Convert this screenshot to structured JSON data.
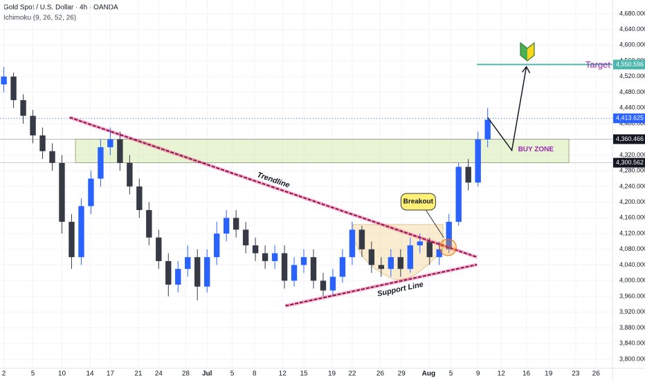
{
  "chart_data": {
    "type": "candlestick",
    "title": "Gold Spot / U.S. Dollar · 4h · OANDA",
    "subtitle": "Ichimoku (9, 26, 52, 26)",
    "x": [
      0,
      1,
      2,
      3,
      4,
      5,
      6,
      7,
      8,
      9,
      10,
      11,
      12,
      13,
      14,
      15,
      16,
      17,
      18,
      19,
      20,
      21,
      22,
      23,
      24,
      25,
      26,
      27,
      28,
      29,
      30,
      31,
      32,
      33,
      34,
      35,
      36,
      37,
      38,
      39,
      40,
      41,
      42,
      43,
      44,
      45,
      46,
      47,
      48,
      49,
      50
    ],
    "open": [
      4500,
      4520,
      4460,
      4420,
      4370,
      4330,
      4300,
      4150,
      4060,
      4190,
      4260,
      4340,
      4360,
      4300,
      4240,
      4180,
      4110,
      4050,
      3990,
      4030,
      4060,
      3985,
      4060,
      4120,
      4160,
      4130,
      4090,
      4070,
      4050,
      4070,
      4000,
      4040,
      4060,
      4000,
      3975,
      4010,
      4060,
      4130,
      4080,
      4040,
      4030,
      4060,
      4030,
      4090,
      4100,
      4060,
      4080,
      4150,
      4290,
      4250,
      4360
    ],
    "high": [
      4545,
      4530,
      4475,
      4435,
      4390,
      4350,
      4320,
      4170,
      4210,
      4280,
      4360,
      4390,
      4380,
      4320,
      4260,
      4200,
      4130,
      4070,
      4050,
      4090,
      4080,
      4080,
      4150,
      4180,
      4180,
      4150,
      4110,
      4090,
      4090,
      4090,
      4060,
      4080,
      4080,
      4020,
      4030,
      4080,
      4150,
      4140,
      4100,
      4060,
      4080,
      4080,
      4110,
      4120,
      4110,
      4100,
      4170,
      4300,
      4310,
      4380,
      4440
    ],
    "low": [
      4480,
      4440,
      4400,
      4350,
      4310,
      4280,
      4120,
      4030,
      4040,
      4170,
      4240,
      4320,
      4280,
      4220,
      4160,
      4090,
      4030,
      3960,
      3970,
      4010,
      3950,
      3970,
      4040,
      4100,
      4110,
      4070,
      4050,
      4030,
      4030,
      3980,
      3985,
      4020,
      3980,
      3960,
      3960,
      3995,
      4040,
      4060,
      4020,
      4010,
      4010,
      4010,
      4020,
      4070,
      4040,
      4040,
      4070,
      4140,
      4230,
      4240,
      4340
    ],
    "close": [
      4520,
      4460,
      4420,
      4370,
      4330,
      4300,
      4150,
      4060,
      4190,
      4260,
      4340,
      4360,
      4300,
      4240,
      4180,
      4110,
      4050,
      3990,
      4030,
      4060,
      3985,
      4060,
      4120,
      4160,
      4130,
      4090,
      4070,
      4050,
      4070,
      4000,
      4040,
      4060,
      4000,
      3975,
      4010,
      4060,
      4130,
      4080,
      4040,
      4030,
      4060,
      4030,
      4090,
      4100,
      4060,
      4080,
      4150,
      4290,
      4250,
      4360,
      4410
    ],
    "up_color": "#2962ff",
    "down_color": "#363a45",
    "grid": true,
    "xlim": [
      -0.4,
      62.9
    ],
    "xticks": [
      {
        "value": 0,
        "label": "2"
      },
      {
        "value": 3,
        "label": "5"
      },
      {
        "value": 6,
        "label": "10"
      },
      {
        "value": 8.9,
        "label": "14"
      },
      {
        "value": 11,
        "label": "17"
      },
      {
        "value": 13.9,
        "label": "21"
      },
      {
        "value": 16,
        "label": "24"
      },
      {
        "value": 18.8,
        "label": "28"
      },
      {
        "value": 21,
        "label": "Jul"
      },
      {
        "value": 23.6,
        "label": "5"
      },
      {
        "value": 25.9,
        "label": "8"
      },
      {
        "value": 28.8,
        "label": "12"
      },
      {
        "value": 31,
        "label": "15"
      },
      {
        "value": 33.9,
        "label": "19"
      },
      {
        "value": 36,
        "label": "22"
      },
      {
        "value": 38.9,
        "label": "26"
      },
      {
        "value": 41.1,
        "label": "29"
      },
      {
        "value": 43.9,
        "label": "Aug"
      },
      {
        "value": 46.2,
        "label": "5"
      },
      {
        "value": 49,
        "label": "9"
      },
      {
        "value": 51.4,
        "label": "12"
      },
      {
        "value": 54,
        "label": "16"
      },
      {
        "value": 56.3,
        "label": "19"
      },
      {
        "value": 59.1,
        "label": "23"
      },
      {
        "value": 61.2,
        "label": "26"
      }
    ],
    "ylim": [
      3777,
      4715
    ],
    "yticks": [
      {
        "value": 3800,
        "label": "3,800.000"
      },
      {
        "value": 3840,
        "label": "3,840.000"
      },
      {
        "value": 3880,
        "label": "3,880.000"
      },
      {
        "value": 3920,
        "label": "3,920.000"
      },
      {
        "value": 3960,
        "label": "3,960.000"
      },
      {
        "value": 4000,
        "label": "4,000.000"
      },
      {
        "value": 4040,
        "label": "4,040.000"
      },
      {
        "value": 4080,
        "label": "4,080.000"
      },
      {
        "value": 4120,
        "label": "4,120.000"
      },
      {
        "value": 4160,
        "label": "4,160.000"
      },
      {
        "value": 4200,
        "label": "4,200.000"
      },
      {
        "value": 4240,
        "label": "4,240.000"
      },
      {
        "value": 4280,
        "label": "4,280.000"
      },
      {
        "value": 4320,
        "label": "4,320.000"
      },
      {
        "value": 4360,
        "label": "4,360.000"
      },
      {
        "value": 4400,
        "label": "4,400.000"
      },
      {
        "value": 4440,
        "label": "4,440.000"
      },
      {
        "value": 4480,
        "label": "4,480.000"
      },
      {
        "value": 4520,
        "label": "4,520.000"
      },
      {
        "value": 4560,
        "label": "4,560.000"
      },
      {
        "value": 4600,
        "label": "4,600.000"
      },
      {
        "value": 4640,
        "label": "4,640.000"
      },
      {
        "value": 4680,
        "label": "4,680.000"
      }
    ],
    "trendline": {
      "label": "Trendline",
      "x": [
        6.8,
        48.9
      ],
      "y": [
        4416,
        4060
      ]
    },
    "support_line": {
      "label": "Support Line",
      "x": [
        29.1,
        48.9
      ],
      "y": [
        3936,
        4041
      ]
    },
    "buy_zone": {
      "label": "BUY ZONE",
      "x": [
        7.4,
        58.4
      ],
      "low": {
        "value": 4300.562,
        "label": "4,300.562"
      },
      "high": {
        "value": 4360.466,
        "label": "4,360.466"
      }
    },
    "target": {
      "label": "Target",
      "x": 48.9,
      "price": {
        "value": 4550.596,
        "label": "4,550.596"
      }
    },
    "last_price": {
      "value": 4413.625,
      "label": "4,413.625"
    },
    "breakout": {
      "label": "Breakout",
      "x": 45.9,
      "y": 4085
    },
    "projection": {
      "x": [
        50,
        52.5,
        54
      ],
      "y": [
        4416,
        4332,
        4545
      ]
    }
  }
}
